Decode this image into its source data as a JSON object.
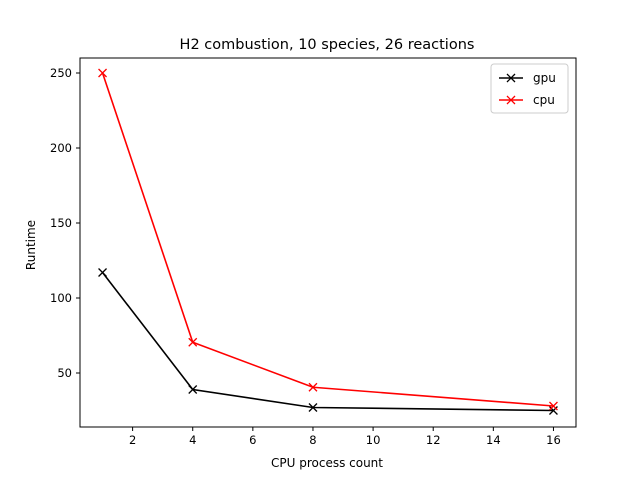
{
  "chart_data": {
    "type": "line",
    "title": "H2 combustion, 10 species, 26 reactions",
    "xlabel": "CPU process count",
    "ylabel": "Runtime",
    "xlim": [
      0.25,
      16.75
    ],
    "ylim": [
      14,
      260
    ],
    "xticks": [
      2,
      4,
      6,
      8,
      10,
      12,
      14,
      16
    ],
    "yticks": [
      50,
      100,
      150,
      200,
      250
    ],
    "legend_position": "top-right",
    "grid": false,
    "series": [
      {
        "name": "gpu",
        "color": "#000000",
        "marker": "x",
        "x": [
          1,
          4,
          8,
          16
        ],
        "y": [
          117,
          39,
          27,
          25
        ]
      },
      {
        "name": "cpu",
        "color": "#ff0000",
        "marker": "x",
        "x": [
          1,
          4,
          8,
          16
        ],
        "y": [
          250,
          70.5,
          40.5,
          28
        ]
      }
    ]
  }
}
